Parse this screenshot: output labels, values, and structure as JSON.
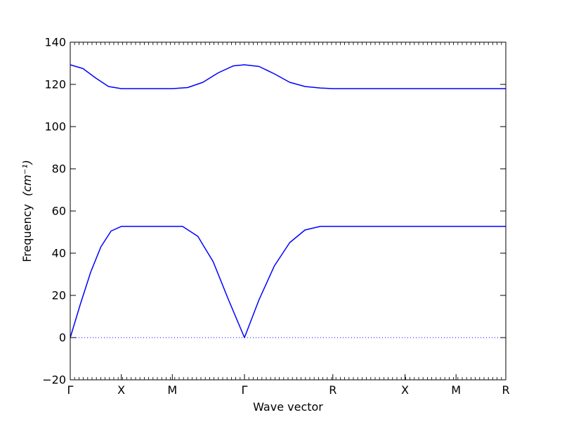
{
  "chart_data": {
    "type": "line",
    "xlabel": "Wave vector",
    "ylabel": "Frequency",
    "ylabel_unit": "(cm⁻¹)",
    "ylim": [
      -20,
      140
    ],
    "yticks": [
      -20,
      0,
      20,
      40,
      60,
      80,
      100,
      120,
      140
    ],
    "xlim": [
      0,
      8.535
    ],
    "x_tick_labels": [
      {
        "label": "Γ",
        "x": 0
      },
      {
        "label": "X",
        "x": 1
      },
      {
        "label": "M",
        "x": 2
      },
      {
        "label": "Γ",
        "x": 3.414
      },
      {
        "label": "R",
        "x": 5.146
      },
      {
        "label": "X",
        "x": 6.56
      },
      {
        "label": "M",
        "x": 7.56
      },
      {
        "label": "R",
        "x": 8.535
      }
    ],
    "series": [
      {
        "x": [
          0,
          0.2,
          0.4,
          0.6,
          0.8,
          1.0,
          2.0,
          2.2,
          2.5,
          2.8,
          3.1,
          3.414,
          3.7,
          4.0,
          4.3,
          4.6,
          4.9,
          5.146,
          6.56,
          7.56,
          8.535
        ],
        "values": [
          0,
          16,
          31,
          43,
          50.5,
          52.7,
          52.7,
          52.7,
          48,
          36,
          18,
          0,
          18,
          34,
          45,
          51,
          52.7,
          52.7,
          52.7,
          52.7,
          52.7
        ]
      },
      {
        "x": [
          0,
          0.25,
          0.5,
          0.75,
          1.0,
          2.0,
          2.3,
          2.6,
          2.9,
          3.2,
          3.414,
          3.7,
          4.0,
          4.3,
          4.6,
          4.9,
          5.146,
          6.56,
          7.56,
          8.535
        ],
        "values": [
          129.3,
          127.5,
          123,
          119,
          118,
          118,
          118.5,
          121,
          125.5,
          128.8,
          129.3,
          128.5,
          125,
          121,
          119,
          118.3,
          118,
          118,
          118,
          118
        ]
      }
    ],
    "reference_line": {
      "y": 0,
      "style": "dotted"
    },
    "colors": {
      "series": "#0000ff",
      "axes": "#000000",
      "reference": "#0000ff"
    },
    "grid": false
  }
}
